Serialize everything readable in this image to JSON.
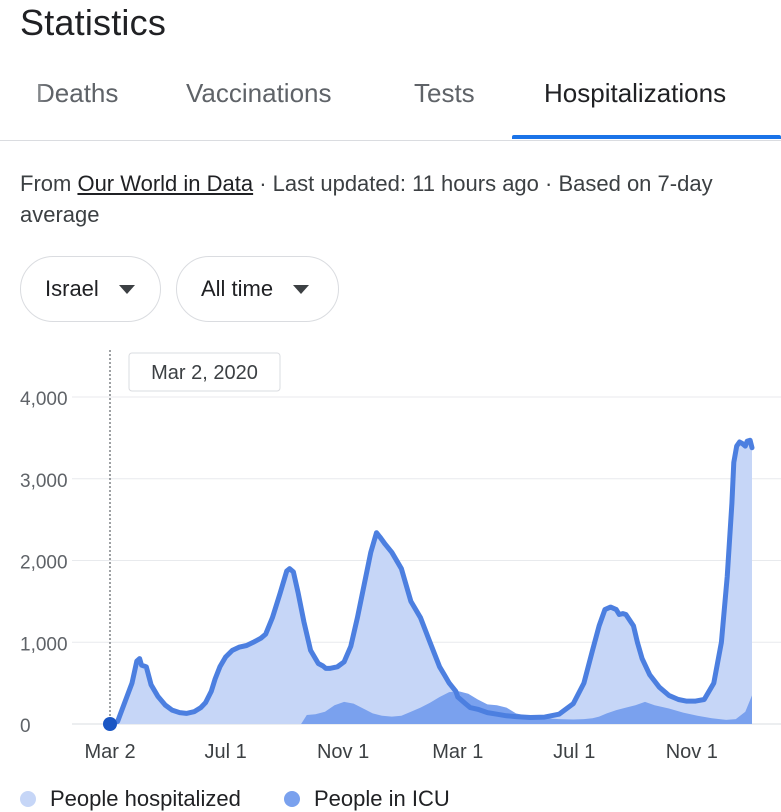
{
  "header": {
    "title": "Statistics"
  },
  "tabs": [
    {
      "label": "Deaths",
      "active": false
    },
    {
      "label": "Vaccinations",
      "active": false
    },
    {
      "label": "Tests",
      "active": false
    },
    {
      "label": "Hospitalizations",
      "active": true
    }
  ],
  "source": {
    "prefix": "From ",
    "link": "Our World in Data",
    "suffix": " · Last updated: 11 hours ago · Based on 7-day average"
  },
  "filters": {
    "location": "Israel",
    "range": "All time"
  },
  "tooltip": {
    "date": "Mar 2, 2020"
  },
  "legend": [
    {
      "label": "People hospitalized",
      "color": "#c6d6f7"
    },
    {
      "label": "People in ICU",
      "color": "#7aa1ee"
    }
  ],
  "chart_data": {
    "type": "area",
    "xlabel": "",
    "ylabel": "",
    "ylim": [
      0,
      4000
    ],
    "y_ticks": [
      "4,000",
      "3,000",
      "2,000",
      "1,000",
      "0"
    ],
    "x_ticks": [
      "Mar 2",
      "Jul 1",
      "Nov 1",
      "Mar 1",
      "Jul 1",
      "Nov 1"
    ],
    "x_tick_days": [
      0,
      121,
      244,
      364,
      486,
      609
    ],
    "grid": true,
    "legend_position": "bottom",
    "colors": {
      "line": "#4c7fe0",
      "hosp_fill": "#c6d6f7",
      "icu_fill": "#7aa1ee",
      "marker": "#1a56c4"
    },
    "series": [
      {
        "name": "People hospitalized",
        "x": [
          0,
          8,
          15,
          23,
          28,
          31,
          33,
          38,
          43,
          50,
          58,
          65,
          73,
          80,
          88,
          95,
          100,
          106,
          110,
          115,
          121,
          128,
          135,
          143,
          150,
          158,
          163,
          170,
          178,
          185,
          188,
          192,
          197,
          203,
          210,
          218,
          223,
          226,
          230,
          238,
          245,
          252,
          259,
          266,
          273,
          279,
          283,
          288,
          295,
          305,
          315,
          325,
          335,
          345,
          350,
          355,
          362,
          364,
          372,
          377,
          385,
          395,
          405,
          415,
          425,
          440,
          455,
          470,
          485,
          496,
          505,
          512,
          518,
          524,
          530,
          533,
          537,
          540,
          548,
          552,
          557,
          565,
          575,
          585,
          595,
          603,
          613,
          622,
          632,
          640,
          646,
          651,
          653,
          656,
          659,
          662,
          665,
          667,
          670,
          672
        ],
        "values": [
          0,
          30,
          250,
          500,
          770,
          800,
          720,
          700,
          480,
          340,
          230,
          170,
          140,
          130,
          150,
          200,
          260,
          400,
          550,
          700,
          820,
          900,
          940,
          960,
          1000,
          1050,
          1100,
          1300,
          1600,
          1870,
          1900,
          1860,
          1600,
          1250,
          900,
          740,
          710,
          680,
          680,
          700,
          760,
          950,
          1300,
          1700,
          2100,
          2340,
          2280,
          2200,
          2100,
          1900,
          1500,
          1300,
          1000,
          700,
          600,
          500,
          400,
          330,
          250,
          200,
          180,
          140,
          120,
          100,
          90,
          80,
          85,
          120,
          250,
          500,
          900,
          1200,
          1400,
          1430,
          1400,
          1340,
          1350,
          1340,
          1200,
          1000,
          800,
          600,
          450,
          350,
          300,
          280,
          280,
          300,
          500,
          1000,
          1800,
          2700,
          3200,
          3400,
          3450,
          3430,
          3400,
          3460,
          3470,
          3380
        ]
      },
      {
        "name": "People in ICU",
        "x": [
          200,
          206,
          215,
          225,
          235,
          245,
          255,
          265,
          275,
          285,
          295,
          305,
          315,
          325,
          335,
          345,
          355,
          365,
          375,
          385,
          395,
          405,
          415,
          425,
          440,
          455,
          470,
          485,
          496,
          505,
          512,
          520,
          530,
          540,
          550,
          560,
          570,
          585,
          600,
          615,
          630,
          645,
          655,
          665,
          672
        ],
        "values": [
          0,
          110,
          120,
          150,
          230,
          270,
          250,
          190,
          130,
          100,
          90,
          100,
          150,
          200,
          260,
          330,
          390,
          400,
          370,
          300,
          240,
          230,
          200,
          130,
          90,
          70,
          60,
          55,
          60,
          70,
          90,
          130,
          170,
          200,
          230,
          270,
          230,
          190,
          140,
          100,
          70,
          50,
          60,
          150,
          350
        ]
      }
    ]
  }
}
